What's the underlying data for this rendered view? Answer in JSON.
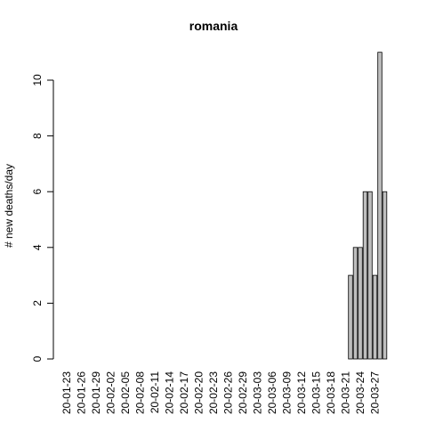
{
  "chart_data": {
    "type": "bar",
    "title": "romania",
    "ylabel": "# new deaths/day",
    "categories": [
      "20-01-23",
      null,
      null,
      "20-01-26",
      null,
      null,
      "20-01-29",
      null,
      null,
      "20-02-02",
      null,
      null,
      "20-02-05",
      null,
      null,
      "20-02-08",
      null,
      null,
      "20-02-11",
      null,
      null,
      "20-02-14",
      null,
      null,
      "20-02-17",
      null,
      null,
      "20-02-20",
      null,
      null,
      "20-02-23",
      null,
      null,
      "20-02-26",
      null,
      null,
      "20-02-29",
      null,
      null,
      "20-03-03",
      null,
      null,
      "20-03-06",
      null,
      null,
      "20-03-09",
      null,
      null,
      "20-03-12",
      null,
      null,
      "20-03-15",
      null,
      null,
      "20-03-18",
      null,
      null,
      "20-03-21",
      null,
      null,
      "20-03-24",
      null,
      null,
      "20-03-27",
      null,
      null
    ],
    "values": [
      0,
      0,
      0,
      0,
      0,
      0,
      0,
      0,
      0,
      0,
      0,
      0,
      0,
      0,
      0,
      0,
      0,
      0,
      0,
      0,
      0,
      0,
      0,
      0,
      0,
      0,
      0,
      0,
      0,
      0,
      0,
      0,
      0,
      0,
      0,
      0,
      0,
      0,
      0,
      0,
      0,
      0,
      0,
      0,
      0,
      0,
      0,
      0,
      0,
      0,
      0,
      0,
      0,
      0,
      0,
      0,
      0,
      0,
      3,
      4,
      4,
      6,
      6,
      3,
      11,
      6
    ],
    "color": "#bebebe",
    "ylim": [
      0,
      11
    ],
    "yticks": [
      0,
      2,
      4,
      6,
      8,
      10
    ],
    "grid": false
  }
}
